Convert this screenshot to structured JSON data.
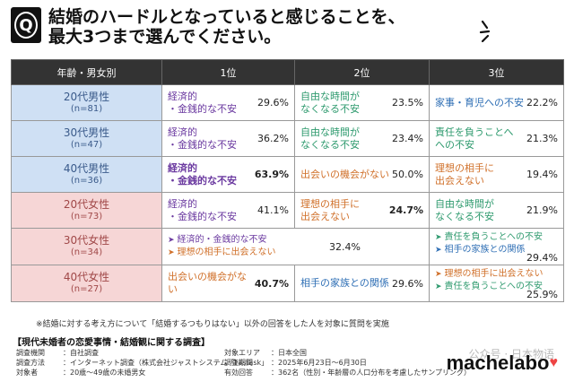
{
  "header": {
    "badge": "Q",
    "question_line1": "結婚のハードルとなっていると感じることを、",
    "question_line2": "最大3つまで選んでください。"
  },
  "table": {
    "headers": [
      "年齢・男女別",
      "1位",
      "2位",
      "3位"
    ],
    "rows": [
      {
        "group": "20代男性",
        "n": "(n=81)",
        "gender": "male",
        "r1": {
          "label1": "経済的",
          "label2": "・金銭的な不安",
          "pct": "29.6%",
          "color": "purple"
        },
        "r2": {
          "label1": "自由な時間が",
          "label2": "なくなる不安",
          "pct": "23.5%",
          "color": "green"
        },
        "r3": {
          "label1": "家事・育児への不安",
          "label2": "",
          "pct": "22.2%",
          "color": "blue"
        }
      },
      {
        "group": "30代男性",
        "n": "(n=47)",
        "gender": "male",
        "r1": {
          "label1": "経済的",
          "label2": "・金銭的な不安",
          "pct": "36.2%",
          "color": "purple"
        },
        "r2": {
          "label1": "自由な時間が",
          "label2": "なくなる不安",
          "pct": "23.4%",
          "color": "green"
        },
        "r3": {
          "label1": "責任を負うことへ",
          "label2": "への不安",
          "pct": "21.3%",
          "color": "green"
        }
      },
      {
        "group": "40代男性",
        "n": "(n=36)",
        "gender": "male",
        "r1": {
          "label1": "経済的",
          "label2": "・金銭的な不安",
          "pct": "63.9%",
          "color": "purple-b"
        },
        "r2": {
          "label1": "出会いの機会がない",
          "label2": "",
          "pct": "50.0%",
          "color": "orange"
        },
        "r3": {
          "label1": "理想の相手に",
          "label2": "出会えない",
          "pct": "19.4%",
          "color": "orange"
        }
      },
      {
        "group": "20代女性",
        "n": "(n=73)",
        "gender": "female",
        "r1": {
          "label1": "経済的",
          "label2": "・金銭的な不安",
          "pct": "41.1%",
          "color": "purple"
        },
        "r2": {
          "label1": "理想の相手に",
          "label2": "出会えない",
          "pct": "24.7%",
          "color": "orange"
        },
        "r3": {
          "label1": "自由な時間が",
          "label2": "なくなる不安",
          "pct": "21.9%",
          "color": "green"
        }
      },
      {
        "group": "30代女性",
        "n": "(n=34)",
        "gender": "female",
        "merged12": {
          "items": [
            "経済的・金銭的な不安",
            "理想の相手に出会えない"
          ],
          "pct": "32.4%"
        },
        "r3": {
          "items": [
            "責任を負うことへの不安",
            "相手の家族との関係"
          ],
          "pct": "29.4%"
        }
      },
      {
        "group": "40代女性",
        "n": "(n=27)",
        "gender": "female",
        "r1": {
          "label1": "出会いの機会がない",
          "label2": "",
          "pct": "40.7%",
          "color": "orange"
        },
        "r2": {
          "label1": "相手の家族との関係",
          "label2": "",
          "pct": "29.6%",
          "color": "blue"
        },
        "r3": {
          "items": [
            "理想の相手に出会えない",
            "責任を負うことへの不安"
          ],
          "pct": "25.9%"
        }
      }
    ]
  },
  "note": "※結婚に対する考え方について「結婚するつもりはない」以外の回答をした人を対象に質問を実施",
  "footer": {
    "title": "【現代未婚者の恋愛事情・結婚観に関する調査】",
    "left": [
      {
        "k": "調査機関",
        "v": "：自社調査"
      },
      {
        "k": "調査方法",
        "v": "：インターネット調査（株式会社ジャストシステム「Fastask」"
      },
      {
        "k": "対象者",
        "v": "：20歳〜49歳の未婚男女"
      }
    ],
    "right": [
      {
        "k": "対象エリア",
        "v": "：日本全国"
      },
      {
        "k": "調査期間",
        "v": "：2025年6月23日〜6月30日"
      },
      {
        "k": "有効回答",
        "v": "：362名（性別・年齢層の人口分布を考慮したサンプリング）"
      }
    ],
    "logo": "machelabo",
    "watermark": "公众号 · 日本物语"
  },
  "colors": {
    "male_bg": "#cfe0f4",
    "female_bg": "#f6d6d6",
    "header_bg": "#333333",
    "purple": "#6b3aa0",
    "green": "#2e9a6e",
    "orange": "#d0702a",
    "blue": "#2f6fb5"
  }
}
